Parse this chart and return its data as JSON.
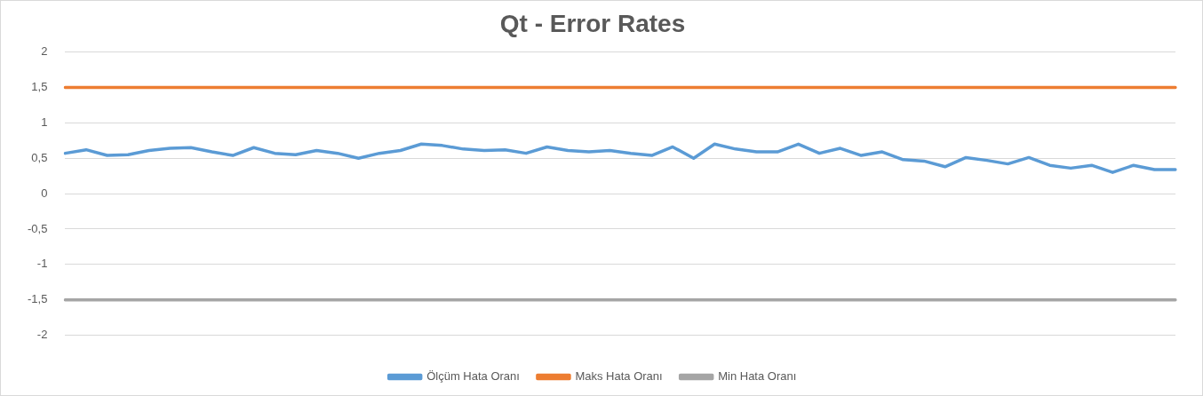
{
  "chart_data": {
    "type": "line",
    "title": "Qt - Error Rates",
    "categories": [
      null,
      null,
      null,
      null,
      null,
      null,
      null,
      null,
      null,
      null,
      null,
      null,
      null,
      null,
      null,
      null,
      null,
      null,
      null,
      null,
      null,
      null,
      null,
      null,
      null,
      null,
      null,
      null,
      null,
      null,
      null,
      null,
      null,
      null,
      null,
      null,
      null,
      null,
      null,
      null,
      null,
      null,
      null,
      null,
      null,
      null,
      null,
      null,
      null,
      null,
      null,
      null,
      null,
      null
    ],
    "series": [
      {
        "name": "Ölçüm Hata Oranı",
        "color": "#5b9bd5",
        "values": [
          0.57,
          0.62,
          0.54,
          0.55,
          0.61,
          0.64,
          0.65,
          0.59,
          0.54,
          0.65,
          0.57,
          0.55,
          0.61,
          0.57,
          0.5,
          0.57,
          0.61,
          0.7,
          0.68,
          0.63,
          0.61,
          0.62,
          0.57,
          0.66,
          0.61,
          0.59,
          0.61,
          0.57,
          0.54,
          0.66,
          0.5,
          0.7,
          0.63,
          0.59,
          0.59,
          0.7,
          0.57,
          0.64,
          0.54,
          0.59,
          0.48,
          0.46,
          0.38,
          0.51,
          0.47,
          0.42,
          0.51,
          0.4,
          0.36,
          0.4,
          0.3,
          0.4,
          0.34,
          0.34
        ]
      },
      {
        "name": "Maks Hata Oranı",
        "color": "#ed7d31",
        "values": [
          1.5,
          1.5,
          1.5,
          1.5,
          1.5,
          1.5,
          1.5,
          1.5,
          1.5,
          1.5,
          1.5,
          1.5,
          1.5,
          1.5,
          1.5,
          1.5,
          1.5,
          1.5,
          1.5,
          1.5,
          1.5,
          1.5,
          1.5,
          1.5,
          1.5,
          1.5,
          1.5,
          1.5,
          1.5,
          1.5,
          1.5,
          1.5,
          1.5,
          1.5,
          1.5,
          1.5,
          1.5,
          1.5,
          1.5,
          1.5,
          1.5,
          1.5,
          1.5,
          1.5,
          1.5,
          1.5,
          1.5,
          1.5,
          1.5,
          1.5,
          1.5,
          1.5,
          1.5,
          1.5
        ]
      },
      {
        "name": "Min Hata Oranı",
        "color": "#a5a5a5",
        "values": [
          -1.5,
          -1.5,
          -1.5,
          -1.5,
          -1.5,
          -1.5,
          -1.5,
          -1.5,
          -1.5,
          -1.5,
          -1.5,
          -1.5,
          -1.5,
          -1.5,
          -1.5,
          -1.5,
          -1.5,
          -1.5,
          -1.5,
          -1.5,
          -1.5,
          -1.5,
          -1.5,
          -1.5,
          -1.5,
          -1.5,
          -1.5,
          -1.5,
          -1.5,
          -1.5,
          -1.5,
          -1.5,
          -1.5,
          -1.5,
          -1.5,
          -1.5,
          -1.5,
          -1.5,
          -1.5,
          -1.5,
          -1.5,
          -1.5,
          -1.5,
          -1.5,
          -1.5,
          -1.5,
          -1.5,
          -1.5,
          -1.5,
          -1.5,
          -1.5,
          -1.5,
          -1.5,
          -1.5
        ]
      }
    ],
    "ylim": [
      -2,
      2
    ],
    "yticks": [
      {
        "value": -2,
        "label": "-2"
      },
      {
        "value": -1.5,
        "label": "-1,5"
      },
      {
        "value": -1,
        "label": "-1"
      },
      {
        "value": -0.5,
        "label": "-0,5"
      },
      {
        "value": 0,
        "label": "0"
      },
      {
        "value": 0.5,
        "label": "0,5"
      },
      {
        "value": 1,
        "label": "1"
      },
      {
        "value": 1.5,
        "label": "1,5"
      },
      {
        "value": 2,
        "label": "2"
      }
    ],
    "grid": "y",
    "legend": "bottom",
    "marker": "none",
    "line_style": "solid"
  }
}
